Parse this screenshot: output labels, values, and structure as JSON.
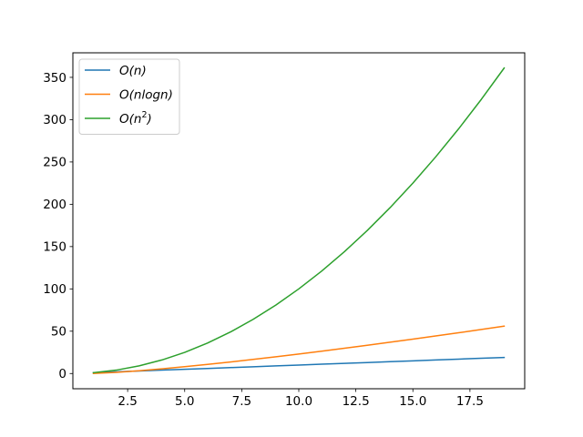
{
  "chart_data": {
    "type": "line",
    "title": "",
    "xlabel": "",
    "ylabel": "",
    "xlim": [
      0.1,
      19.9
    ],
    "ylim": [
      -18.0,
      379.0
    ],
    "x_ticks": [
      2.5,
      5.0,
      7.5,
      10.0,
      12.5,
      15.0,
      17.5
    ],
    "x_tick_labels": [
      "2.5",
      "5.0",
      "7.5",
      "10.0",
      "12.5",
      "15.0",
      "17.5"
    ],
    "y_ticks": [
      0,
      50,
      100,
      150,
      200,
      250,
      300,
      350
    ],
    "y_tick_labels": [
      "0",
      "50",
      "100",
      "150",
      "200",
      "250",
      "300",
      "350"
    ],
    "grid": false,
    "legend_position": "top-left",
    "x": [
      1,
      2,
      3,
      4,
      5,
      6,
      7,
      8,
      9,
      10,
      11,
      12,
      13,
      14,
      15,
      16,
      17,
      18,
      19
    ],
    "series": [
      {
        "name": "O(n)",
        "legend": {
          "base": "O(",
          "var": "n",
          "rest": "",
          "sup": "",
          "close": ")"
        },
        "color": "#1f77b4",
        "values": [
          1,
          2,
          3,
          4,
          5,
          6,
          7,
          8,
          9,
          10,
          11,
          12,
          13,
          14,
          15,
          16,
          17,
          18,
          19
        ]
      },
      {
        "name": "O(nlogn)",
        "legend": {
          "base": "O(",
          "var": "n",
          "rest": "logn",
          "sup": "",
          "close": ")"
        },
        "color": "#ff7f0e",
        "values": [
          0,
          1.39,
          3.3,
          5.55,
          8.05,
          10.75,
          13.62,
          16.64,
          19.78,
          23.03,
          26.38,
          29.82,
          33.34,
          36.95,
          40.62,
          44.36,
          48.16,
          52.03,
          55.94
        ]
      },
      {
        "name": "O(n^2)",
        "legend": {
          "base": "O(",
          "var": "n",
          "rest": "",
          "sup": "2",
          "close": ")"
        },
        "color": "#2ca02c",
        "values": [
          1,
          4,
          9,
          16,
          25,
          36,
          49,
          64,
          81,
          100,
          121,
          144,
          169,
          196,
          225,
          256,
          289,
          324,
          361
        ]
      }
    ]
  }
}
